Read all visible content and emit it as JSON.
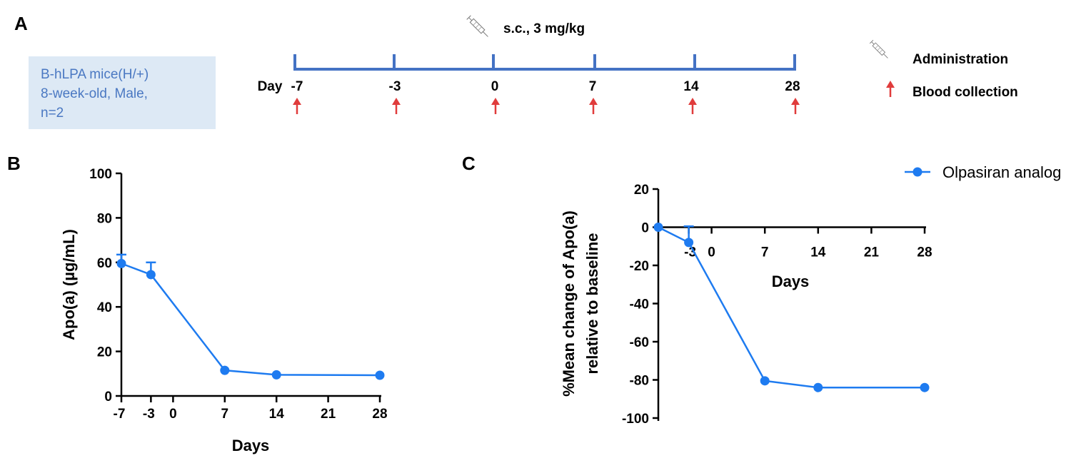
{
  "panels": {
    "a": "A",
    "b": "B",
    "c": "C"
  },
  "info_box": {
    "lines": [
      "B-hLPA mice(H/+)",
      "8-week-old, Male,",
      "n=2"
    ]
  },
  "timeline": {
    "day_label": "Day",
    "days": [
      "-7",
      "-3",
      "0",
      "7",
      "14",
      "28"
    ],
    "dose_label": "s.c., 3 mg/kg",
    "line_color": "#4472c4",
    "arrow_color": "#e03c3c"
  },
  "legend_top": {
    "administration": "Administration",
    "blood_collection": "Blood collection"
  },
  "series_color": "#1e7bf0",
  "chart_data": [
    {
      "type": "line",
      "xlabel": "Days",
      "ylabel": "Apo(a) (µg/mL)",
      "xticks": [
        "-7",
        "-3",
        "0",
        "7",
        "14",
        "21",
        "28"
      ],
      "xtick_values": [
        -7,
        -3,
        0,
        7,
        14,
        21,
        28
      ],
      "yticks": [
        "0",
        "20",
        "40",
        "60",
        "80",
        "100"
      ],
      "ytick_values": [
        0,
        20,
        40,
        60,
        80,
        100
      ],
      "ylim": [
        0,
        100
      ],
      "series": [
        {
          "name": "Olpasiran analog",
          "x": [
            -7,
            -3,
            7,
            14,
            28
          ],
          "y": [
            59.5,
            54.5,
            11.5,
            9.5,
            9.3
          ],
          "error_upper": [
            63.5,
            60.0,
            null,
            null,
            null
          ]
        }
      ]
    },
    {
      "type": "line",
      "xlabel": "Days",
      "ylabel": [
        "%Mean change of Apo(a)",
        "relative to baseline"
      ],
      "xticks": [
        "-3",
        "0",
        "7",
        "14",
        "21",
        "28"
      ],
      "xtick_values": [
        -3,
        0,
        7,
        14,
        21,
        28
      ],
      "yticks": [
        "20",
        "0",
        "-20",
        "-40",
        "-60",
        "-80",
        "-100"
      ],
      "ytick_values": [
        20,
        0,
        -20,
        -40,
        -60,
        -80,
        -100
      ],
      "ylim": [
        -100,
        20
      ],
      "legend": "top-right",
      "series": [
        {
          "name": "Olpasiran analog",
          "x": [
            -7,
            -3,
            7,
            14,
            28
          ],
          "y": [
            0,
            -8.0,
            -80.5,
            -84.0,
            -84.0
          ],
          "error_upper": [
            null,
            0.5,
            null,
            null,
            null
          ]
        }
      ]
    }
  ]
}
